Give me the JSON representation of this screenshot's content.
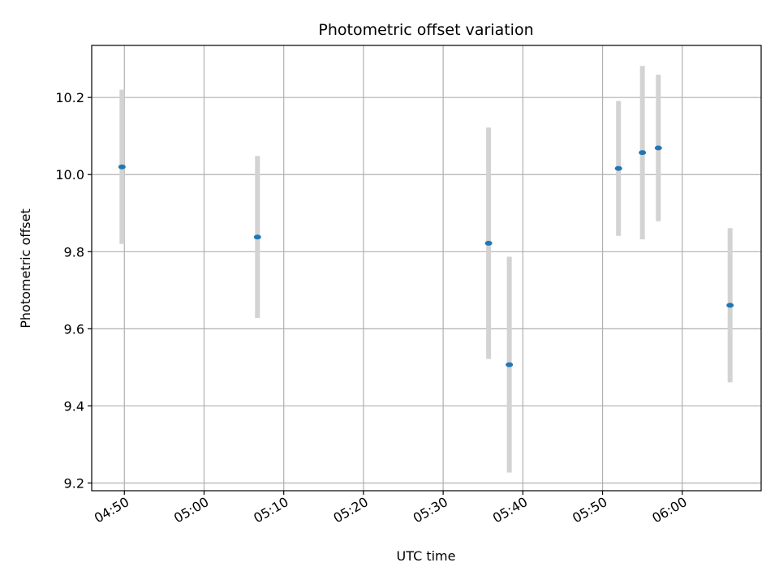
{
  "chart_data": {
    "type": "scatter",
    "title": "Photometric offset variation",
    "xlabel": "UTC time",
    "ylabel": "Photometric offset",
    "x_tick_labels": [
      "04:50",
      "05:00",
      "05:10",
      "05:20",
      "05:30",
      "05:40",
      "05:50",
      "06:00"
    ],
    "x_tick_minutes": [
      290,
      300,
      310,
      320,
      330,
      340,
      350,
      360
    ],
    "x_range_minutes": [
      285.9,
      369.9
    ],
    "y_ticks": [
      9.2,
      9.4,
      9.6,
      9.8,
      10.0,
      10.2
    ],
    "y_tick_labels": [
      "9.2",
      "9.4",
      "9.6",
      "9.8",
      "10.0",
      "10.2"
    ],
    "ylim": [
      9.18,
      10.335
    ],
    "grid": true,
    "x_time_minutes": [
      289.7,
      306.7,
      335.7,
      338.3,
      352.0,
      355.0,
      357.0,
      366.0
    ],
    "y": [
      10.02,
      9.838,
      9.822,
      9.507,
      10.016,
      10.057,
      10.069,
      9.661
    ],
    "y_err": [
      0.2,
      0.21,
      0.3,
      0.28,
      0.175,
      0.225,
      0.19,
      0.2
    ],
    "point_color": "#1f77b4",
    "errorbar_color": "#d3d3d3",
    "grid_color": "#b0b0b0"
  }
}
